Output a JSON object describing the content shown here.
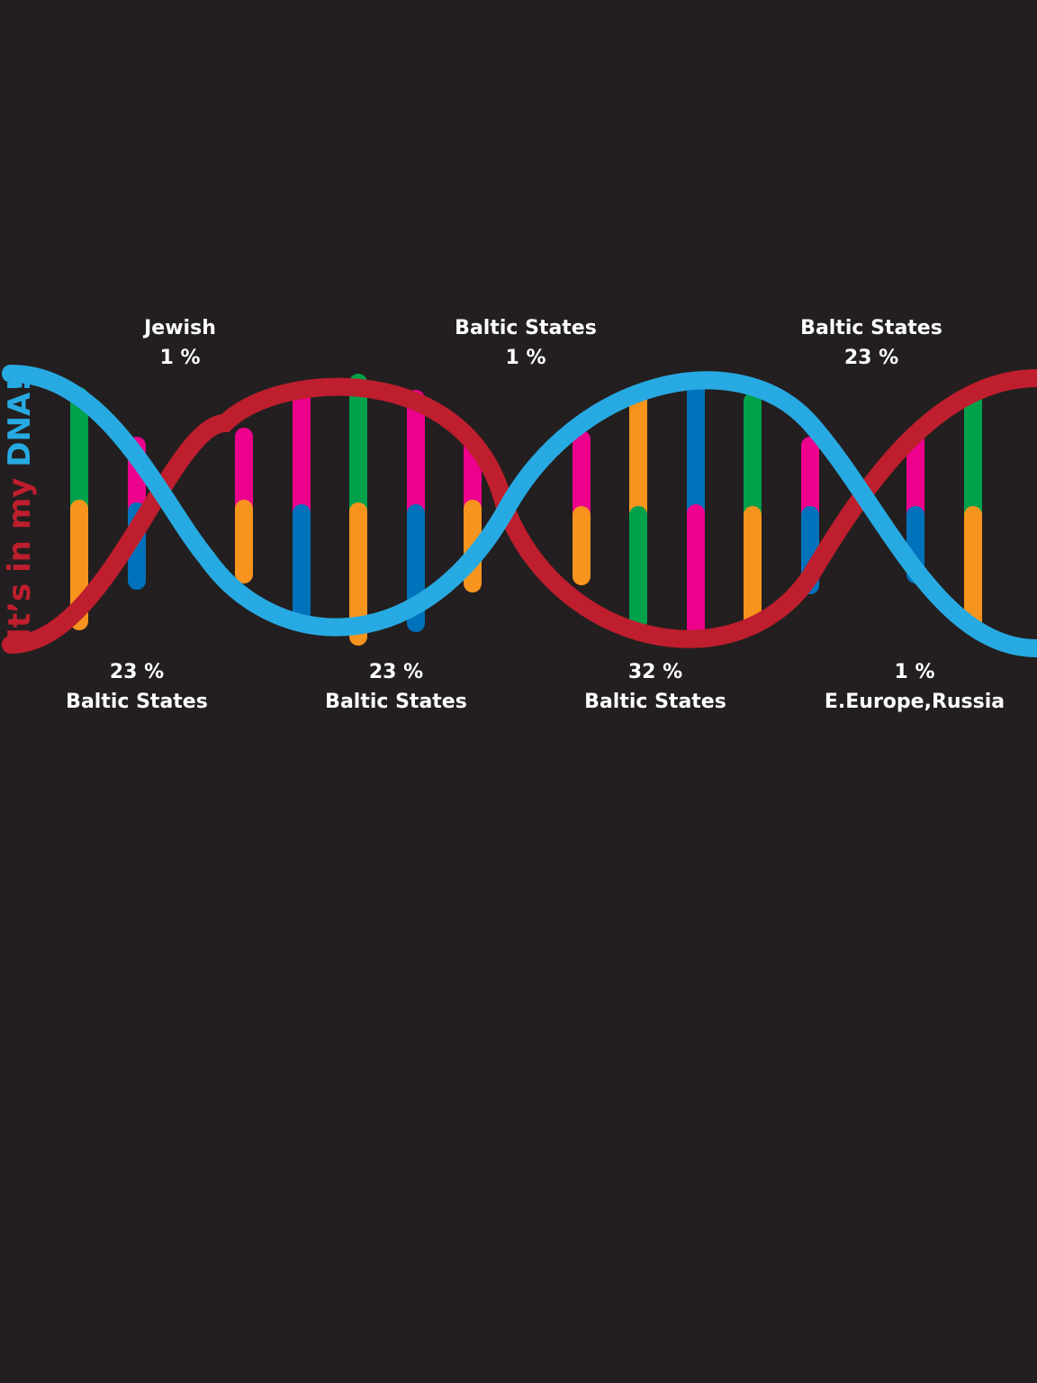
{
  "tagline": {
    "part1": "It’s in my ",
    "part2": "DNA!",
    "color1": "#be1e2d",
    "color2": "#27aae1"
  },
  "strand_colors": {
    "red_strand": "#be1e2d",
    "blue_strand": "#27aae1"
  },
  "rung_colors": {
    "green": "#00a14b",
    "orange": "#f7941d",
    "magenta": "#ec008c",
    "blue": "#0072bc"
  },
  "top_labels": [
    {
      "region": "Jewish",
      "percent": "1 %"
    },
    {
      "region": "Baltic States",
      "percent": "1 %"
    },
    {
      "region": "Baltic States",
      "percent": "23 %"
    }
  ],
  "bottom_labels": [
    {
      "percent": "23 %",
      "region": "Baltic States"
    },
    {
      "percent": "23 %",
      "region": "Baltic States"
    },
    {
      "percent": "32 %",
      "region": "Baltic States"
    },
    {
      "percent": "1 %",
      "region": "E.Europe,Russia"
    }
  ]
}
